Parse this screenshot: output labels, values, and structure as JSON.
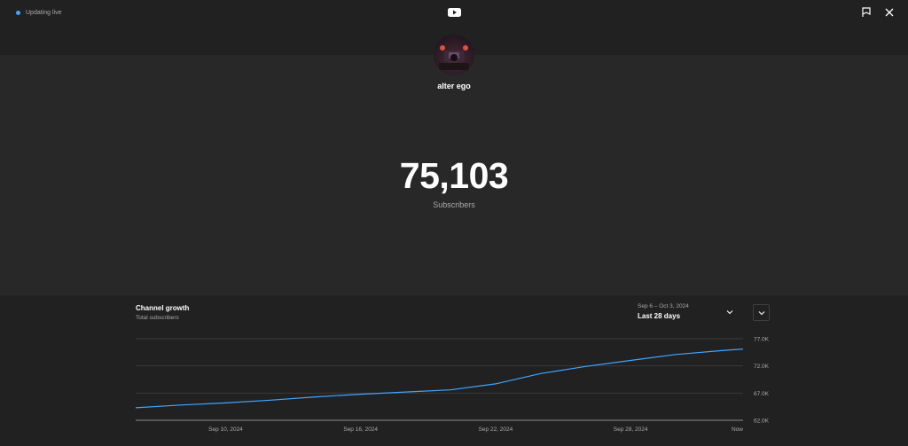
{
  "header": {
    "status_text": "Updating live",
    "status_color": "#3ea6ff",
    "logo_icon": "youtube-logo-icon",
    "feedback_icon": "flag-icon",
    "close_icon": "close-icon"
  },
  "channel": {
    "name": "alter ego",
    "subscriber_count": "75,103",
    "subscriber_label": "Subscribers"
  },
  "growth": {
    "title": "Channel growth",
    "subtitle": "Total subscribers",
    "date_range": "Sep 6 – Oct 3, 2024",
    "range_label": "Last 28 days",
    "accent_color": "#3ea6ff"
  },
  "chart_data": {
    "type": "line",
    "title": "Channel growth",
    "subtitle": "Total subscribers",
    "x_tick_labels": [
      "Sep 10, 2024",
      "Sep 16, 2024",
      "Sep 22, 2024",
      "Sep 28, 2024",
      "Now"
    ],
    "y_tick_labels": [
      "77.0K",
      "72.0K",
      "67.0K",
      "62.0K"
    ],
    "ylim": [
      62000,
      77000
    ],
    "grid": true,
    "series": [
      {
        "x": [
          "Sep 6, 2024",
          "Sep 8, 2024",
          "Sep 10, 2024",
          "Sep 12, 2024",
          "Sep 14, 2024",
          "Sep 16, 2024",
          "Sep 18, 2024",
          "Sep 20, 2024",
          "Sep 22, 2024",
          "Sep 24, 2024",
          "Sep 26, 2024",
          "Sep 28, 2024",
          "Sep 30, 2024",
          "Oct 2, 2024",
          "Oct 3, 2024"
        ],
        "values": [
          64300,
          64800,
          65200,
          65700,
          66300,
          66800,
          67200,
          67600,
          68700,
          70600,
          71900,
          73000,
          74100,
          74800,
          75103
        ]
      }
    ]
  }
}
